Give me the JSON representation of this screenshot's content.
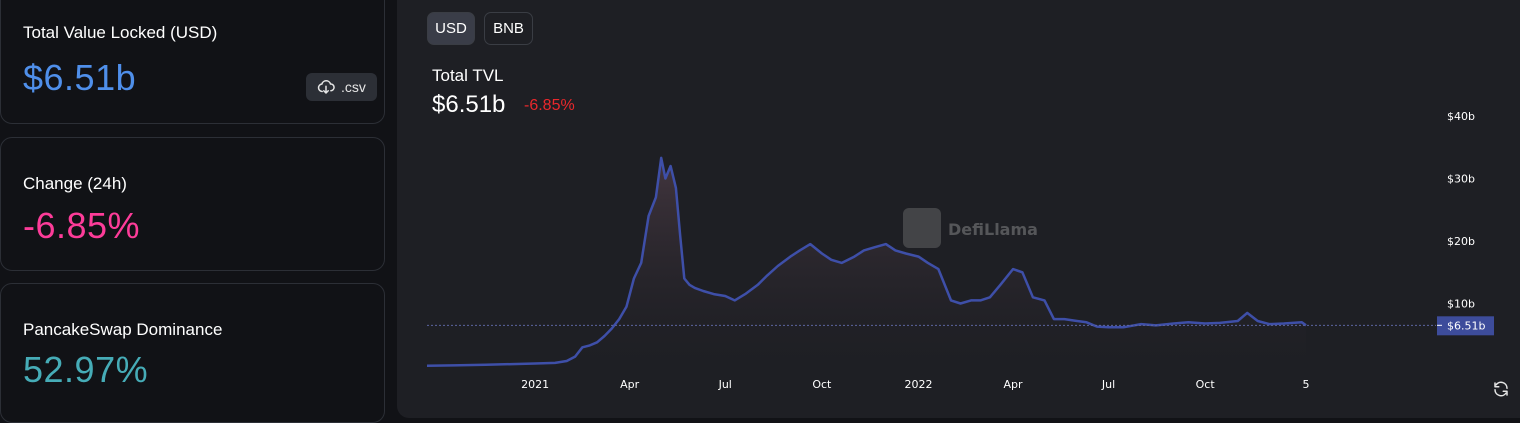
{
  "cards": {
    "tvl": {
      "label": "Total Value Locked (USD)",
      "value": "$6.51b",
      "color": "#4f8fea",
      "csv_label": ".csv"
    },
    "change": {
      "label": "Change (24h)",
      "value": "-6.85%",
      "color": "#fd3c99"
    },
    "dominance": {
      "label": "PancakeSwap Dominance",
      "value": "52.97%",
      "color": "#46acb7"
    }
  },
  "toggles": [
    {
      "label": "USD",
      "active": true
    },
    {
      "label": "BNB",
      "active": false
    }
  ],
  "chart_header": {
    "title": "Total TVL",
    "value": "$6.51b",
    "change": "-6.85%",
    "change_color": "#e9282c"
  },
  "watermark": "DefiLlama",
  "chart_data": {
    "type": "area",
    "title": "Total TVL",
    "current_value_label": "$6.51b",
    "current_value": 6.51,
    "y_unit": "billion USD",
    "ylim": [
      0,
      40
    ],
    "y_ticks": [
      {
        "value": 10,
        "label": "$10b"
      },
      {
        "value": 20,
        "label": "$20b"
      },
      {
        "value": 30,
        "label": "$30b"
      },
      {
        "value": 40,
        "label": "$40b"
      }
    ],
    "x_range": [
      "2020-09-20",
      "2023-05-05"
    ],
    "x_ticks": [
      {
        "date": "2021-01-01",
        "label": "2021"
      },
      {
        "date": "2021-04-01",
        "label": "Apr"
      },
      {
        "date": "2021-07-01",
        "label": "Jul"
      },
      {
        "date": "2021-10-01",
        "label": "Oct"
      },
      {
        "date": "2022-01-01",
        "label": "2022"
      },
      {
        "date": "2022-04-01",
        "label": "Apr"
      },
      {
        "date": "2022-07-01",
        "label": "Jul"
      },
      {
        "date": "2022-10-01",
        "label": "Oct"
      },
      {
        "date": "2023-01-05",
        "label": "5"
      }
    ],
    "line_color": "#3e4fa8",
    "series": [
      {
        "x": [
          "2020-09-20",
          "2020-10-15",
          "2020-11-15",
          "2020-12-10",
          "2021-01-01",
          "2021-01-20",
          "2021-01-31",
          "2021-02-08",
          "2021-02-15",
          "2021-02-22",
          "2021-03-01",
          "2021-03-08",
          "2021-03-15",
          "2021-03-22",
          "2021-03-29",
          "2021-04-05",
          "2021-04-12",
          "2021-04-19",
          "2021-04-26",
          "2021-05-01",
          "2021-05-05",
          "2021-05-10",
          "2021-05-15",
          "2021-05-19",
          "2021-05-23",
          "2021-05-28",
          "2021-06-02",
          "2021-06-10",
          "2021-06-20",
          "2021-07-01",
          "2021-07-10",
          "2021-07-20",
          "2021-08-01",
          "2021-08-10",
          "2021-08-20",
          "2021-09-01",
          "2021-09-10",
          "2021-09-20",
          "2021-10-01",
          "2021-10-10",
          "2021-10-20",
          "2021-11-01",
          "2021-11-10",
          "2021-11-20",
          "2021-12-01",
          "2021-12-10",
          "2021-12-20",
          "2022-01-01",
          "2022-01-10",
          "2022-01-20",
          "2022-02-01",
          "2022-02-10",
          "2022-02-20",
          "2022-03-01",
          "2022-03-10",
          "2022-03-20",
          "2022-04-01",
          "2022-04-10",
          "2022-04-20",
          "2022-05-01",
          "2022-05-10",
          "2022-05-20",
          "2022-06-01",
          "2022-06-10",
          "2022-06-20",
          "2022-07-01",
          "2022-07-15",
          "2022-08-01",
          "2022-08-15",
          "2022-09-01",
          "2022-09-15",
          "2022-10-01",
          "2022-10-15",
          "2022-11-01",
          "2022-11-10",
          "2022-11-20",
          "2022-12-01",
          "2022-12-15",
          "2023-01-01",
          "2023-01-05"
        ],
        "y": [
          0.05,
          0.1,
          0.2,
          0.3,
          0.4,
          0.5,
          0.8,
          1.5,
          3,
          3.3,
          3.8,
          4.8,
          6,
          7.5,
          9.5,
          14,
          16.5,
          24,
          27,
          33.3,
          30,
          32,
          28.5,
          21,
          14,
          13,
          12.5,
          12,
          11.5,
          11.2,
          10.5,
          11.5,
          13,
          14.5,
          16,
          17.5,
          18.5,
          19.5,
          18,
          17,
          16.5,
          17.5,
          18.5,
          19,
          19.5,
          18.5,
          18,
          17.5,
          16.5,
          15.5,
          10.5,
          10,
          10.5,
          10.5,
          11,
          13,
          15.5,
          15,
          11,
          10.5,
          7.5,
          7.5,
          7.2,
          7,
          6.3,
          6.2,
          6.2,
          6.7,
          6.5,
          6.8,
          7,
          6.8,
          6.9,
          7.2,
          8.5,
          7.2,
          6.7,
          6.8,
          7,
          6.51
        ]
      }
    ]
  }
}
